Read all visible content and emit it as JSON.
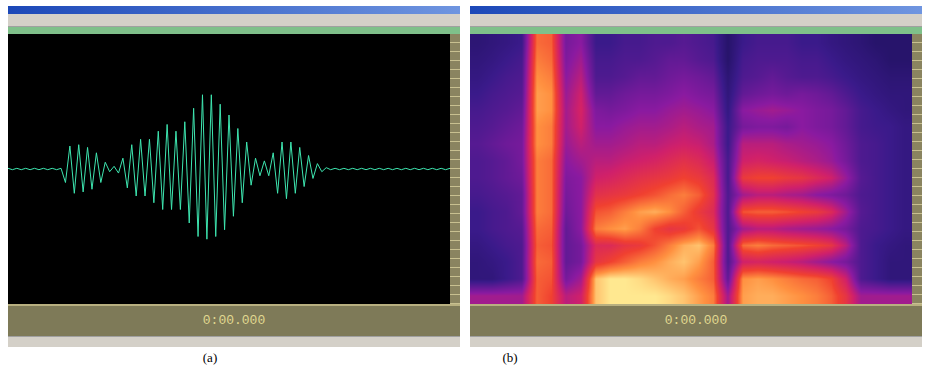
{
  "chart_data": [
    {
      "type": "line",
      "color": "#3ee6b0",
      "tick_labels": false,
      "grid": false,
      "annotations": [
        "0:00.000",
        "(a)"
      ],
      "xlim": [
        0,
        1
      ],
      "ylim": [
        -1,
        1
      ],
      "x": [
        0,
        0.01,
        0.02,
        0.03,
        0.04,
        0.05,
        0.06,
        0.07,
        0.08,
        0.09,
        0.1,
        0.11,
        0.12,
        0.13,
        0.14,
        0.15,
        0.16,
        0.17,
        0.18,
        0.19,
        0.2,
        0.21,
        0.22,
        0.23,
        0.24,
        0.25,
        0.26,
        0.27,
        0.28,
        0.29,
        0.3,
        0.31,
        0.32,
        0.33,
        0.34,
        0.35,
        0.36,
        0.37,
        0.38,
        0.39,
        0.4,
        0.41,
        0.42,
        0.43,
        0.44,
        0.45,
        0.46,
        0.47,
        0.48,
        0.49,
        0.5,
        0.51,
        0.52,
        0.53,
        0.54,
        0.55,
        0.56,
        0.57,
        0.58,
        0.59,
        0.6,
        0.61,
        0.62,
        0.63,
        0.64,
        0.65,
        0.66,
        0.67,
        0.68,
        0.69,
        0.7,
        0.71,
        0.72,
        0.73,
        0.74,
        0.75,
        0.76,
        0.77,
        0.78,
        0.79,
        0.8,
        0.81,
        0.82,
        0.83,
        0.84,
        0.85,
        0.86,
        0.87,
        0.88,
        0.89,
        0.9,
        0.91,
        0.92,
        0.93,
        0.94,
        0.95,
        0.96,
        0.97,
        0.98,
        0.99,
        1
      ],
      "values": [
        0.005,
        -0.005,
        0.005,
        -0.005,
        0.005,
        -0.005,
        0.005,
        -0.005,
        0.005,
        -0.005,
        0.005,
        -0.005,
        0.005,
        -0.1,
        0.17,
        -0.18,
        0.18,
        -0.17,
        0.16,
        -0.15,
        0.12,
        -0.1,
        0.05,
        -0.02,
        0.02,
        -0.03,
        0.08,
        -0.14,
        0.18,
        -0.2,
        0.22,
        -0.2,
        0.22,
        -0.25,
        0.28,
        -0.3,
        0.33,
        -0.3,
        0.28,
        -0.3,
        0.35,
        -0.4,
        0.45,
        -0.5,
        0.55,
        -0.52,
        0.55,
        -0.5,
        0.48,
        -0.45,
        0.4,
        -0.35,
        0.3,
        -0.25,
        0.2,
        -0.12,
        0.08,
        -0.05,
        0.06,
        -0.05,
        0.12,
        -0.18,
        0.2,
        -0.22,
        0.2,
        -0.18,
        0.16,
        -0.13,
        0.1,
        -0.07,
        0.04,
        -0.02,
        0.01,
        -0.005,
        0.005,
        -0.005,
        0.005,
        -0.005,
        0.005,
        -0.005,
        0.005,
        -0.005,
        0.005,
        -0.005,
        0.005,
        -0.005,
        0.005,
        -0.005,
        0.005,
        -0.005,
        0.005,
        -0.005,
        0.005,
        -0.005,
        0.005,
        -0.005,
        0.005,
        -0.005,
        0.005,
        -0.005,
        0.005
      ]
    },
    {
      "type": "heatmap",
      "tick_labels": false,
      "grid": false,
      "annotations": [
        "0:00.000",
        "(b)"
      ],
      "xlim": [
        -0.5,
        29.5
      ],
      "ylim": [
        -0.5,
        15.5
      ],
      "zlim": [
        0,
        1
      ],
      "cells": [
        [
          0.5,
          0.5,
          0.5,
          0.5,
          0.8,
          0.75,
          0.55,
          0.6,
          0.95,
          1,
          1,
          1,
          1,
          0.98,
          0.95,
          0.9,
          0.85,
          0.5,
          0.9,
          0.92,
          0.92,
          0.9,
          0.88,
          0.85,
          0.8,
          0.7,
          0.5,
          0.5,
          0.5,
          0.5
        ],
        [
          0.2,
          0.2,
          0.25,
          0.3,
          0.8,
          0.78,
          0.4,
          0.5,
          0.95,
          1,
          1,
          0.98,
          0.95,
          0.92,
          0.9,
          0.85,
          0.8,
          0.35,
          0.88,
          0.9,
          0.88,
          0.85,
          0.82,
          0.8,
          0.75,
          0.6,
          0.3,
          0.25,
          0.2,
          0.2
        ],
        [
          0.2,
          0.22,
          0.25,
          0.3,
          0.82,
          0.8,
          0.35,
          0.4,
          0.7,
          0.75,
          0.8,
          0.85,
          0.88,
          0.92,
          0.95,
          0.9,
          0.8,
          0.3,
          0.6,
          0.62,
          0.6,
          0.58,
          0.55,
          0.5,
          0.45,
          0.4,
          0.3,
          0.25,
          0.2,
          0.2
        ],
        [
          0.22,
          0.25,
          0.28,
          0.3,
          0.8,
          0.78,
          0.35,
          0.4,
          0.65,
          0.65,
          0.7,
          0.72,
          0.78,
          0.85,
          0.92,
          0.95,
          0.85,
          0.3,
          0.82,
          0.85,
          0.82,
          0.8,
          0.78,
          0.75,
          0.7,
          0.55,
          0.3,
          0.25,
          0.22,
          0.2
        ],
        [
          0.25,
          0.28,
          0.3,
          0.32,
          0.82,
          0.8,
          0.35,
          0.45,
          0.85,
          0.88,
          0.9,
          0.85,
          0.75,
          0.7,
          0.72,
          0.78,
          0.7,
          0.3,
          0.5,
          0.55,
          0.55,
          0.52,
          0.5,
          0.48,
          0.45,
          0.4,
          0.3,
          0.28,
          0.25,
          0.22
        ],
        [
          0.25,
          0.28,
          0.3,
          0.35,
          0.85,
          0.82,
          0.38,
          0.45,
          0.78,
          0.8,
          0.85,
          0.9,
          0.92,
          0.88,
          0.8,
          0.72,
          0.65,
          0.3,
          0.78,
          0.8,
          0.8,
          0.78,
          0.75,
          0.72,
          0.65,
          0.5,
          0.32,
          0.28,
          0.25,
          0.22
        ],
        [
          0.28,
          0.3,
          0.32,
          0.35,
          0.85,
          0.82,
          0.4,
          0.45,
          0.68,
          0.7,
          0.72,
          0.75,
          0.78,
          0.82,
          0.85,
          0.8,
          0.68,
          0.3,
          0.5,
          0.55,
          0.55,
          0.52,
          0.5,
          0.45,
          0.42,
          0.38,
          0.3,
          0.28,
          0.25,
          0.22
        ],
        [
          0.3,
          0.32,
          0.35,
          0.38,
          0.85,
          0.82,
          0.42,
          0.45,
          0.6,
          0.62,
          0.65,
          0.68,
          0.7,
          0.72,
          0.75,
          0.72,
          0.65,
          0.28,
          0.72,
          0.75,
          0.75,
          0.72,
          0.7,
          0.65,
          0.6,
          0.48,
          0.32,
          0.28,
          0.25,
          0.22
        ],
        [
          0.3,
          0.32,
          0.35,
          0.4,
          0.85,
          0.82,
          0.45,
          0.5,
          0.55,
          0.55,
          0.58,
          0.6,
          0.62,
          0.65,
          0.68,
          0.65,
          0.58,
          0.28,
          0.6,
          0.62,
          0.6,
          0.58,
          0.55,
          0.52,
          0.48,
          0.4,
          0.3,
          0.28,
          0.25,
          0.22
        ],
        [
          0.32,
          0.35,
          0.38,
          0.4,
          0.88,
          0.85,
          0.48,
          0.55,
          0.5,
          0.5,
          0.52,
          0.55,
          0.55,
          0.58,
          0.6,
          0.58,
          0.52,
          0.25,
          0.55,
          0.55,
          0.55,
          0.52,
          0.5,
          0.48,
          0.45,
          0.38,
          0.3,
          0.28,
          0.25,
          0.22
        ],
        [
          0.3,
          0.32,
          0.35,
          0.38,
          0.88,
          0.85,
          0.5,
          0.6,
          0.45,
          0.45,
          0.48,
          0.5,
          0.5,
          0.52,
          0.55,
          0.52,
          0.5,
          0.25,
          0.4,
          0.42,
          0.42,
          0.4,
          0.45,
          0.42,
          0.4,
          0.35,
          0.28,
          0.26,
          0.25,
          0.22
        ],
        [
          0.28,
          0.3,
          0.32,
          0.35,
          0.9,
          0.88,
          0.5,
          0.62,
          0.42,
          0.4,
          0.42,
          0.45,
          0.45,
          0.48,
          0.5,
          0.48,
          0.45,
          0.22,
          0.45,
          0.48,
          0.5,
          0.48,
          0.45,
          0.42,
          0.4,
          0.35,
          0.28,
          0.25,
          0.22,
          0.2
        ],
        [
          0.25,
          0.28,
          0.3,
          0.32,
          0.9,
          0.88,
          0.48,
          0.6,
          0.35,
          0.35,
          0.38,
          0.4,
          0.4,
          0.42,
          0.45,
          0.42,
          0.4,
          0.2,
          0.35,
          0.38,
          0.4,
          0.38,
          0.4,
          0.38,
          0.35,
          0.3,
          0.25,
          0.22,
          0.2,
          0.2
        ],
        [
          0.22,
          0.25,
          0.28,
          0.3,
          0.88,
          0.85,
          0.45,
          0.55,
          0.3,
          0.3,
          0.32,
          0.35,
          0.35,
          0.38,
          0.4,
          0.38,
          0.35,
          0.18,
          0.3,
          0.32,
          0.35,
          0.32,
          0.3,
          0.3,
          0.28,
          0.25,
          0.22,
          0.2,
          0.18,
          0.18
        ],
        [
          0.2,
          0.22,
          0.25,
          0.28,
          0.85,
          0.82,
          0.42,
          0.5,
          0.28,
          0.28,
          0.3,
          0.3,
          0.32,
          0.35,
          0.35,
          0.32,
          0.3,
          0.15,
          0.28,
          0.3,
          0.3,
          0.3,
          0.28,
          0.28,
          0.25,
          0.22,
          0.2,
          0.18,
          0.15,
          0.15
        ],
        [
          0.18,
          0.2,
          0.22,
          0.25,
          0.82,
          0.8,
          0.4,
          0.45,
          0.25,
          0.25,
          0.28,
          0.28,
          0.3,
          0.3,
          0.32,
          0.3,
          0.28,
          0.15,
          0.25,
          0.28,
          0.28,
          0.28,
          0.25,
          0.25,
          0.22,
          0.2,
          0.18,
          0.15,
          0.15,
          0.15
        ]
      ]
    }
  ]
}
